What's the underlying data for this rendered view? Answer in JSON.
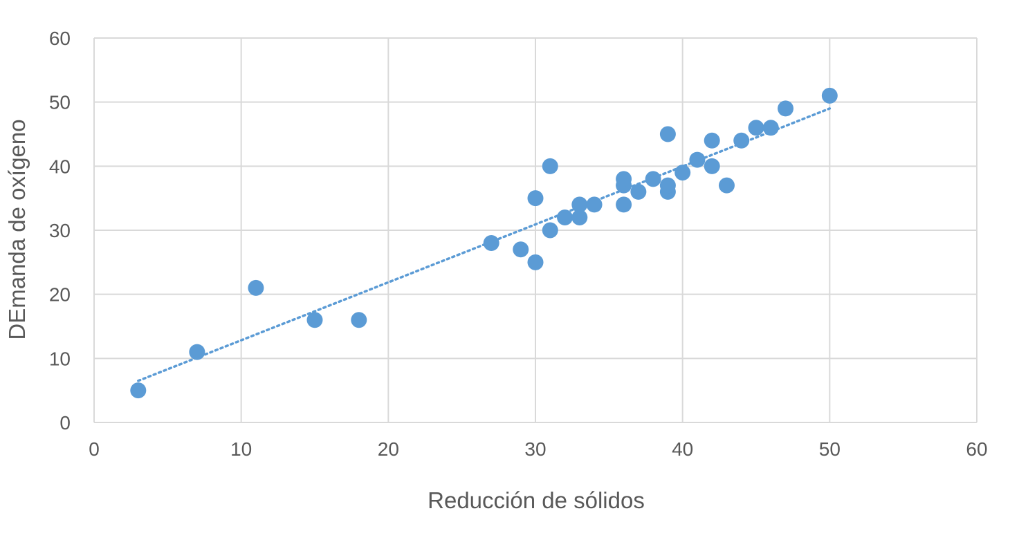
{
  "chart_data": {
    "type": "scatter",
    "title": "",
    "xlabel": "Reducción de sólidos",
    "ylabel": "DEmanda de oxígeno",
    "xlim": [
      0,
      60
    ],
    "ylim": [
      0,
      60
    ],
    "xticks": [
      0,
      10,
      20,
      30,
      40,
      50,
      60
    ],
    "yticks": [
      0,
      10,
      20,
      30,
      40,
      50,
      60
    ],
    "grid": true,
    "legend": "none",
    "marker_color": "#5B9BD5",
    "trendline": {
      "type": "linear",
      "style": "dotted",
      "color": "#5B9BD5",
      "x_range": [
        3,
        50
      ],
      "y_start": 6.5,
      "y_end": 49
    },
    "series": [
      {
        "points": [
          [
            3,
            5
          ],
          [
            7,
            11
          ],
          [
            11,
            21
          ],
          [
            15,
            16
          ],
          [
            18,
            16
          ],
          [
            27,
            28
          ],
          [
            29,
            27
          ],
          [
            30,
            25
          ],
          [
            30,
            35
          ],
          [
            31,
            30
          ],
          [
            31,
            40
          ],
          [
            32,
            32
          ],
          [
            33,
            32
          ],
          [
            33,
            34
          ],
          [
            34,
            34
          ],
          [
            36,
            34
          ],
          [
            36,
            37
          ],
          [
            36,
            38
          ],
          [
            37,
            36
          ],
          [
            38,
            38
          ],
          [
            39,
            36
          ],
          [
            39,
            37
          ],
          [
            39,
            45
          ],
          [
            40,
            39
          ],
          [
            41,
            41
          ],
          [
            42,
            40
          ],
          [
            42,
            44
          ],
          [
            43,
            37
          ],
          [
            44,
            44
          ],
          [
            45,
            46
          ],
          [
            46,
            46
          ],
          [
            47,
            49
          ],
          [
            50,
            51
          ]
        ]
      }
    ]
  },
  "colors": {
    "gridline": "#D9D9D9",
    "text": "#595959",
    "marker": "#5B9BD5"
  }
}
